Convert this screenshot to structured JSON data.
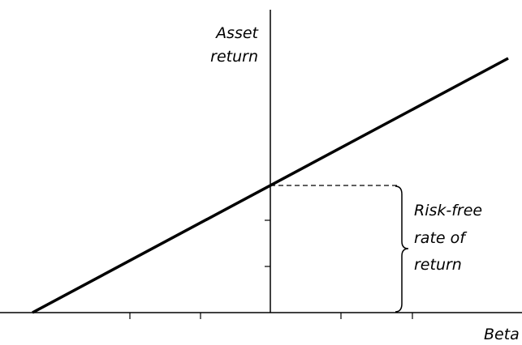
{
  "y_axis_label": [
    "Asset",
    "return"
  ],
  "x_axis_label": "Beta",
  "bracket_label": [
    "Risk-free",
    "rate of",
    "return"
  ]
}
